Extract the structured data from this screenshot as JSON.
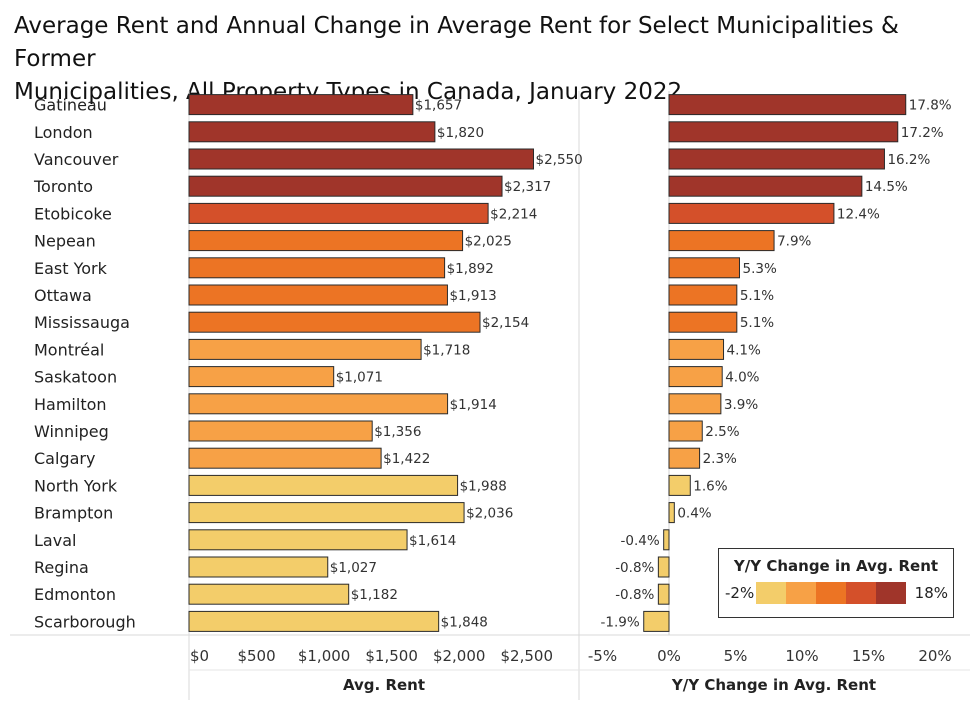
{
  "title_line1": "Average Rent and Annual Change in Average Rent for Select Municipalities & Former",
  "title_line2": "Municipalities, All Property Types in Canada, January 2022",
  "chart_data": [
    {
      "type": "bar",
      "orientation": "horizontal",
      "categories": [
        "Gatineau",
        "London",
        "Vancouver",
        "Toronto",
        "Etobicoke",
        "Nepean",
        "East York",
        "Ottawa",
        "Mississauga",
        "Montréal",
        "Saskatoon",
        "Hamilton",
        "Winnipeg",
        "Calgary",
        "North York",
        "Brampton",
        "Laval",
        "Regina",
        "Edmonton",
        "Scarborough"
      ],
      "values": [
        1657,
        1820,
        2550,
        2317,
        2214,
        2025,
        1892,
        1913,
        2154,
        1718,
        1071,
        1914,
        1356,
        1422,
        1988,
        2036,
        1614,
        1027,
        1182,
        1848
      ],
      "data_labels": [
        "$1,657",
        "$1,820",
        "$2,550",
        "$2,317",
        "$2,214",
        "$2,025",
        "$1,892",
        "$1,913",
        "$2,154",
        "$1,718",
        "$1,071",
        "$1,914",
        "$1,356",
        "$1,422",
        "$1,988",
        "$2,036",
        "$1,614",
        "$1,027",
        "$1,182",
        "$1,848"
      ],
      "xlabel": "Avg. Rent",
      "xlim": [
        0,
        2900
      ],
      "xticks": [
        0,
        500,
        1000,
        1500,
        2000,
        2500
      ],
      "xtick_labels": [
        "$0",
        "$500",
        "$1,000",
        "$1,500",
        "$2,000",
        "$2,500"
      ]
    },
    {
      "type": "bar",
      "orientation": "horizontal",
      "categories": [
        "Gatineau",
        "London",
        "Vancouver",
        "Toronto",
        "Etobicoke",
        "Nepean",
        "East York",
        "Ottawa",
        "Mississauga",
        "Montréal",
        "Saskatoon",
        "Hamilton",
        "Winnipeg",
        "Calgary",
        "North York",
        "Brampton",
        "Laval",
        "Regina",
        "Edmonton",
        "Scarborough"
      ],
      "values": [
        17.8,
        17.2,
        16.2,
        14.5,
        12.4,
        7.9,
        5.3,
        5.1,
        5.1,
        4.1,
        4.0,
        3.9,
        2.5,
        2.3,
        1.6,
        0.4,
        -0.4,
        -0.8,
        -0.8,
        -1.9
      ],
      "data_labels": [
        "17.8%",
        "17.2%",
        "16.2%",
        "14.5%",
        "12.4%",
        "7.9%",
        "5.3%",
        "5.1%",
        "5.1%",
        "4.1%",
        "4.0%",
        "3.9%",
        "2.5%",
        "2.3%",
        "1.6%",
        "0.4%",
        "-0.4%",
        "-0.8%",
        "-0.8%",
        "-1.9%"
      ],
      "xlabel": "Y/Y Change in Avg. Rent",
      "xlim": [
        -6.5,
        22.5
      ],
      "xticks": [
        -5,
        0,
        5,
        10,
        15,
        20
      ],
      "xtick_labels": [
        "-5%",
        "0%",
        "5%",
        "10%",
        "15%",
        "20%"
      ]
    }
  ],
  "legend": {
    "title": "Y/Y Change in Avg. Rent",
    "min_label": "-2%",
    "max_label": "18%",
    "colors": [
      "#f3cd6a",
      "#f7a146",
      "#ec7424",
      "#d4502a",
      "#a0352a"
    ]
  }
}
